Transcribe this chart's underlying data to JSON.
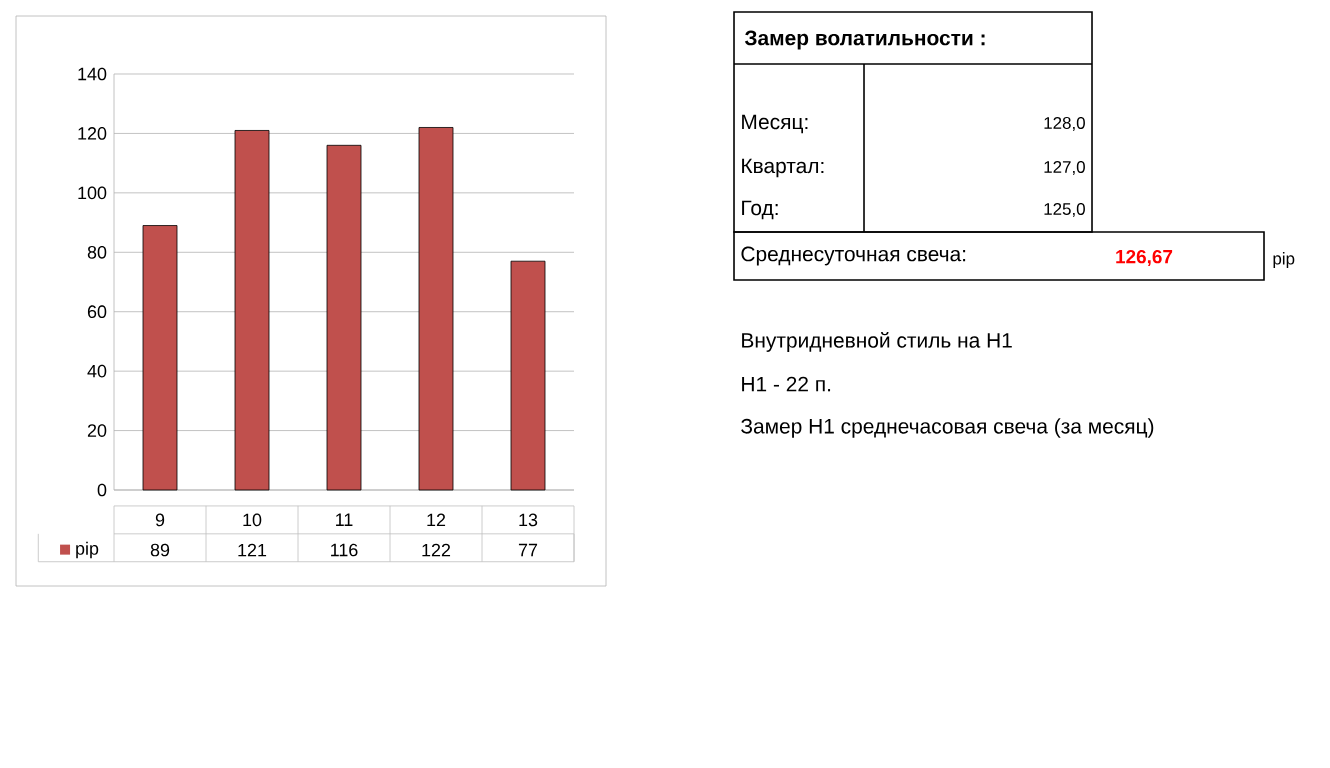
{
  "chart_data": {
    "type": "bar",
    "categories": [
      "9",
      "10",
      "11",
      "12",
      "13"
    ],
    "series": [
      {
        "name": "pip",
        "color": "#c0504d",
        "values": [
          89,
          121,
          116,
          122,
          77
        ]
      }
    ],
    "ylim": [
      0,
      140
    ],
    "yticks": [
      0,
      20,
      40,
      60,
      80,
      100,
      120,
      140
    ],
    "grid": "y",
    "data_labels": true,
    "legend": "bottom",
    "annotations": [
      "Замер  волатильности  :",
      "Месяц:",
      "128,0",
      "Квартал:",
      "127,0",
      "Год:",
      "125,0",
      "Среднесуточная свеча:",
      "126,67",
      "pip",
      "Внутридневной стиль на H1",
      "H1 - 22 п.",
      "Замер H1 среднечасовая свеча (за месяц)"
    ]
  }
}
